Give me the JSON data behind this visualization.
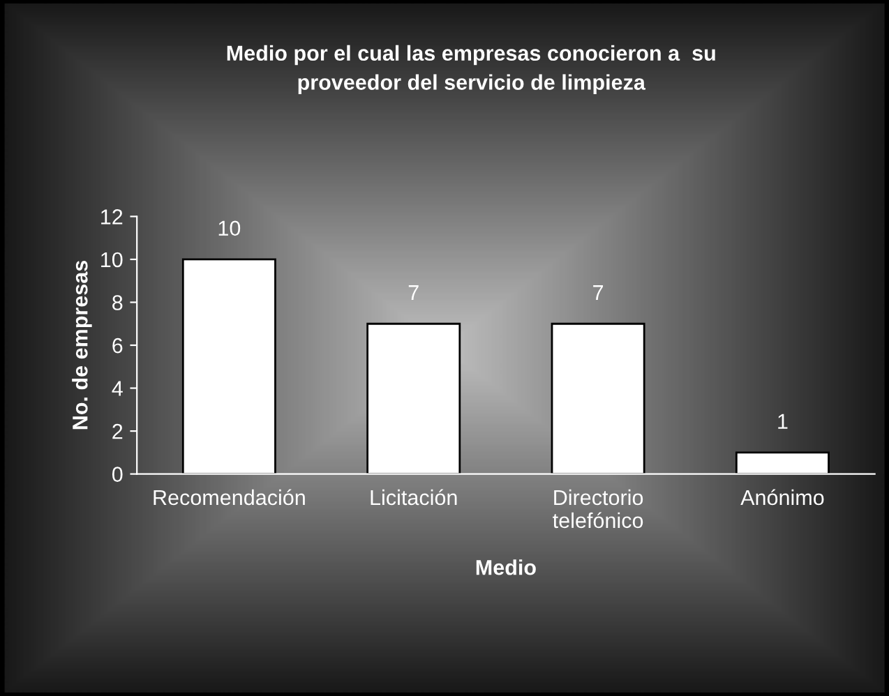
{
  "chart_data": {
    "type": "bar",
    "title": "Medio por el cual las empresas conocieron a  su\nproveedor del servicio de limpieza",
    "xlabel": "Medio",
    "ylabel": "No. de empresas",
    "categories": [
      "Recomendación",
      "Licitación",
      "Directorio\ntelefónico",
      "Anónimo"
    ],
    "values": [
      10,
      7,
      7,
      1
    ],
    "color": "#ffffff",
    "ylim": [
      0,
      12
    ],
    "yticks": [
      0,
      2,
      4,
      6,
      8,
      10,
      12
    ],
    "data_labels": true,
    "grid": false,
    "legend": false
  }
}
